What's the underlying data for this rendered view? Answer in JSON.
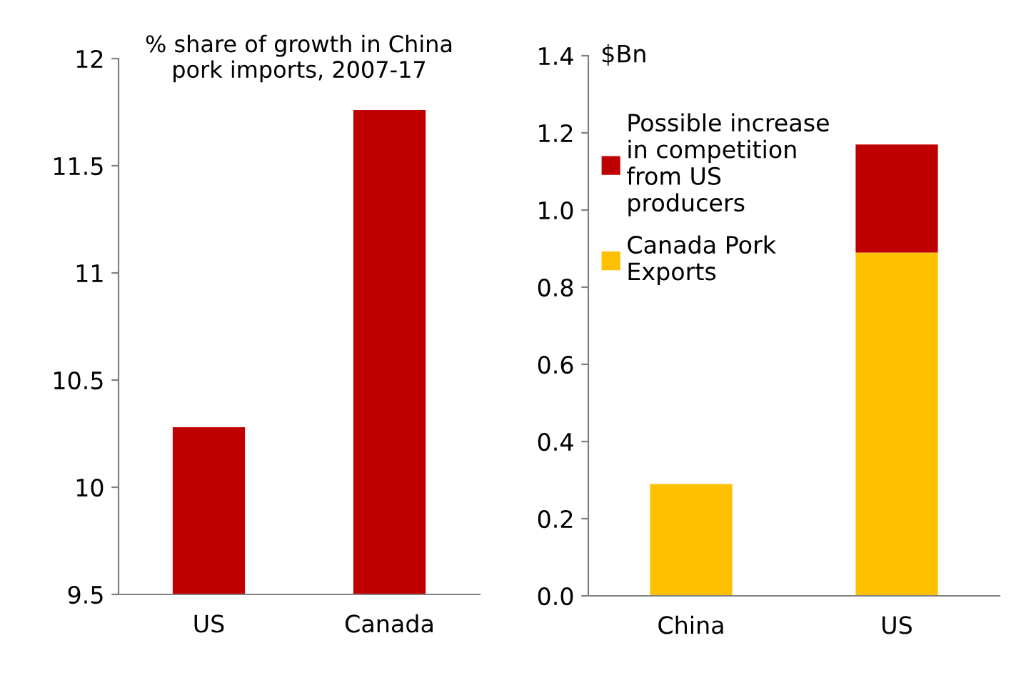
{
  "chart_data": [
    {
      "type": "bar",
      "title": "% share of growth in China\npork imports, 2007-17",
      "categories": [
        "US",
        "Canada"
      ],
      "values": [
        10.28,
        11.76
      ],
      "color": "#c00000",
      "ylim": [
        9.5,
        12
      ],
      "yticks": [
        9.5,
        10,
        10.5,
        11,
        11.5,
        12
      ],
      "grid": false,
      "legend": false
    },
    {
      "type": "bar",
      "ylabel": "$Bn",
      "categories": [
        "China",
        "US"
      ],
      "stacked": true,
      "legend": "top left",
      "grid": false,
      "series": [
        {
          "name": "Canada Pork\nExports",
          "color": "#ffc000",
          "values": [
            0.29,
            0.89
          ]
        },
        {
          "name": "Possible increase\nin competition\nfrom US\nproducers",
          "color": "#c00000",
          "values": [
            null,
            0.28
          ]
        }
      ],
      "ylim": [
        0,
        1.4
      ],
      "yticks": [
        {
          "value": 0,
          "label": "0.0"
        },
        0.2,
        0.4,
        0.6,
        0.8,
        {
          "value": 1,
          "label": "1.0"
        },
        1.2,
        1.4
      ]
    }
  ]
}
